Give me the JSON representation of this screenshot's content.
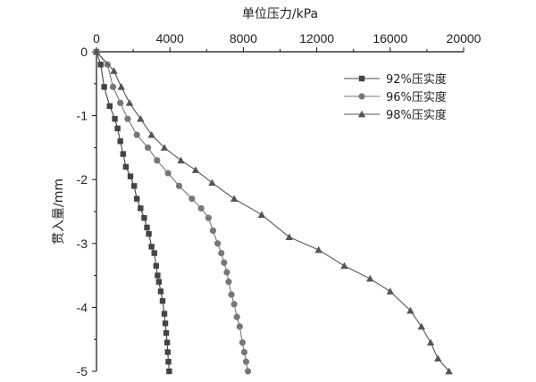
{
  "chart_data": {
    "type": "line",
    "title": "",
    "xlabel": "单位压力/kPa",
    "ylabel": "贯入量/mm",
    "x_axis_position": "top",
    "xlim": [
      0,
      20000
    ],
    "ylim": [
      -5,
      0
    ],
    "xticks": [
      "0",
      "4000",
      "8000",
      "12000",
      "16000",
      "20000"
    ],
    "yticks": [
      "0",
      "-1",
      "-2",
      "-3",
      "-4",
      "-5"
    ],
    "grid": false,
    "legend_position": "top-right",
    "series": [
      {
        "name": "92%压实度",
        "marker": "square",
        "color": "#444444",
        "points": [
          [
            0,
            0
          ],
          [
            230,
            -0.2
          ],
          [
            420,
            -0.55
          ],
          [
            720,
            -0.85
          ],
          [
            1000,
            -1.05
          ],
          [
            1150,
            -1.2
          ],
          [
            1300,
            -1.4
          ],
          [
            1450,
            -1.6
          ],
          [
            1600,
            -1.8
          ],
          [
            1850,
            -1.95
          ],
          [
            2050,
            -2.1
          ],
          [
            2200,
            -2.3
          ],
          [
            2400,
            -2.45
          ],
          [
            2600,
            -2.6
          ],
          [
            2750,
            -2.75
          ],
          [
            2850,
            -2.85
          ],
          [
            3000,
            -3.05
          ],
          [
            3150,
            -3.15
          ],
          [
            3250,
            -3.35
          ],
          [
            3330,
            -3.5
          ],
          [
            3400,
            -3.6
          ],
          [
            3500,
            -3.75
          ],
          [
            3600,
            -3.9
          ],
          [
            3700,
            -4.1
          ],
          [
            3750,
            -4.25
          ],
          [
            3800,
            -4.4
          ],
          [
            3850,
            -4.55
          ],
          [
            3880,
            -4.7
          ],
          [
            3920,
            -4.85
          ],
          [
            3960,
            -5.0
          ]
        ]
      },
      {
        "name": "96%压实度",
        "marker": "circle",
        "color": "#777777",
        "points": [
          [
            0,
            0
          ],
          [
            600,
            -0.2
          ],
          [
            900,
            -0.55
          ],
          [
            1300,
            -0.8
          ],
          [
            1700,
            -1.05
          ],
          [
            2200,
            -1.3
          ],
          [
            2800,
            -1.5
          ],
          [
            3300,
            -1.7
          ],
          [
            3900,
            -1.9
          ],
          [
            4500,
            -2.1
          ],
          [
            5200,
            -2.3
          ],
          [
            5700,
            -2.45
          ],
          [
            6100,
            -2.6
          ],
          [
            6350,
            -2.8
          ],
          [
            6600,
            -3.0
          ],
          [
            6800,
            -3.15
          ],
          [
            6950,
            -3.3
          ],
          [
            7100,
            -3.45
          ],
          [
            7200,
            -3.6
          ],
          [
            7350,
            -3.8
          ],
          [
            7500,
            -3.95
          ],
          [
            7650,
            -4.15
          ],
          [
            7800,
            -4.3
          ],
          [
            7950,
            -4.55
          ],
          [
            8050,
            -4.7
          ],
          [
            8150,
            -4.85
          ],
          [
            8250,
            -5.0
          ]
        ]
      },
      {
        "name": "98%压实度",
        "marker": "triangle",
        "color": "#555555",
        "points": [
          [
            0,
            0
          ],
          [
            950,
            -0.3
          ],
          [
            1350,
            -0.55
          ],
          [
            1800,
            -0.8
          ],
          [
            2400,
            -1.05
          ],
          [
            3000,
            -1.3
          ],
          [
            3700,
            -1.5
          ],
          [
            4600,
            -1.7
          ],
          [
            5400,
            -1.85
          ],
          [
            6300,
            -2.05
          ],
          [
            7500,
            -2.3
          ],
          [
            9000,
            -2.55
          ],
          [
            10500,
            -2.9
          ],
          [
            12100,
            -3.1
          ],
          [
            13500,
            -3.35
          ],
          [
            14900,
            -3.55
          ],
          [
            16000,
            -3.75
          ],
          [
            17100,
            -4.05
          ],
          [
            17700,
            -4.3
          ],
          [
            18200,
            -4.55
          ],
          [
            18600,
            -4.8
          ],
          [
            19200,
            -5.0
          ]
        ]
      }
    ]
  }
}
